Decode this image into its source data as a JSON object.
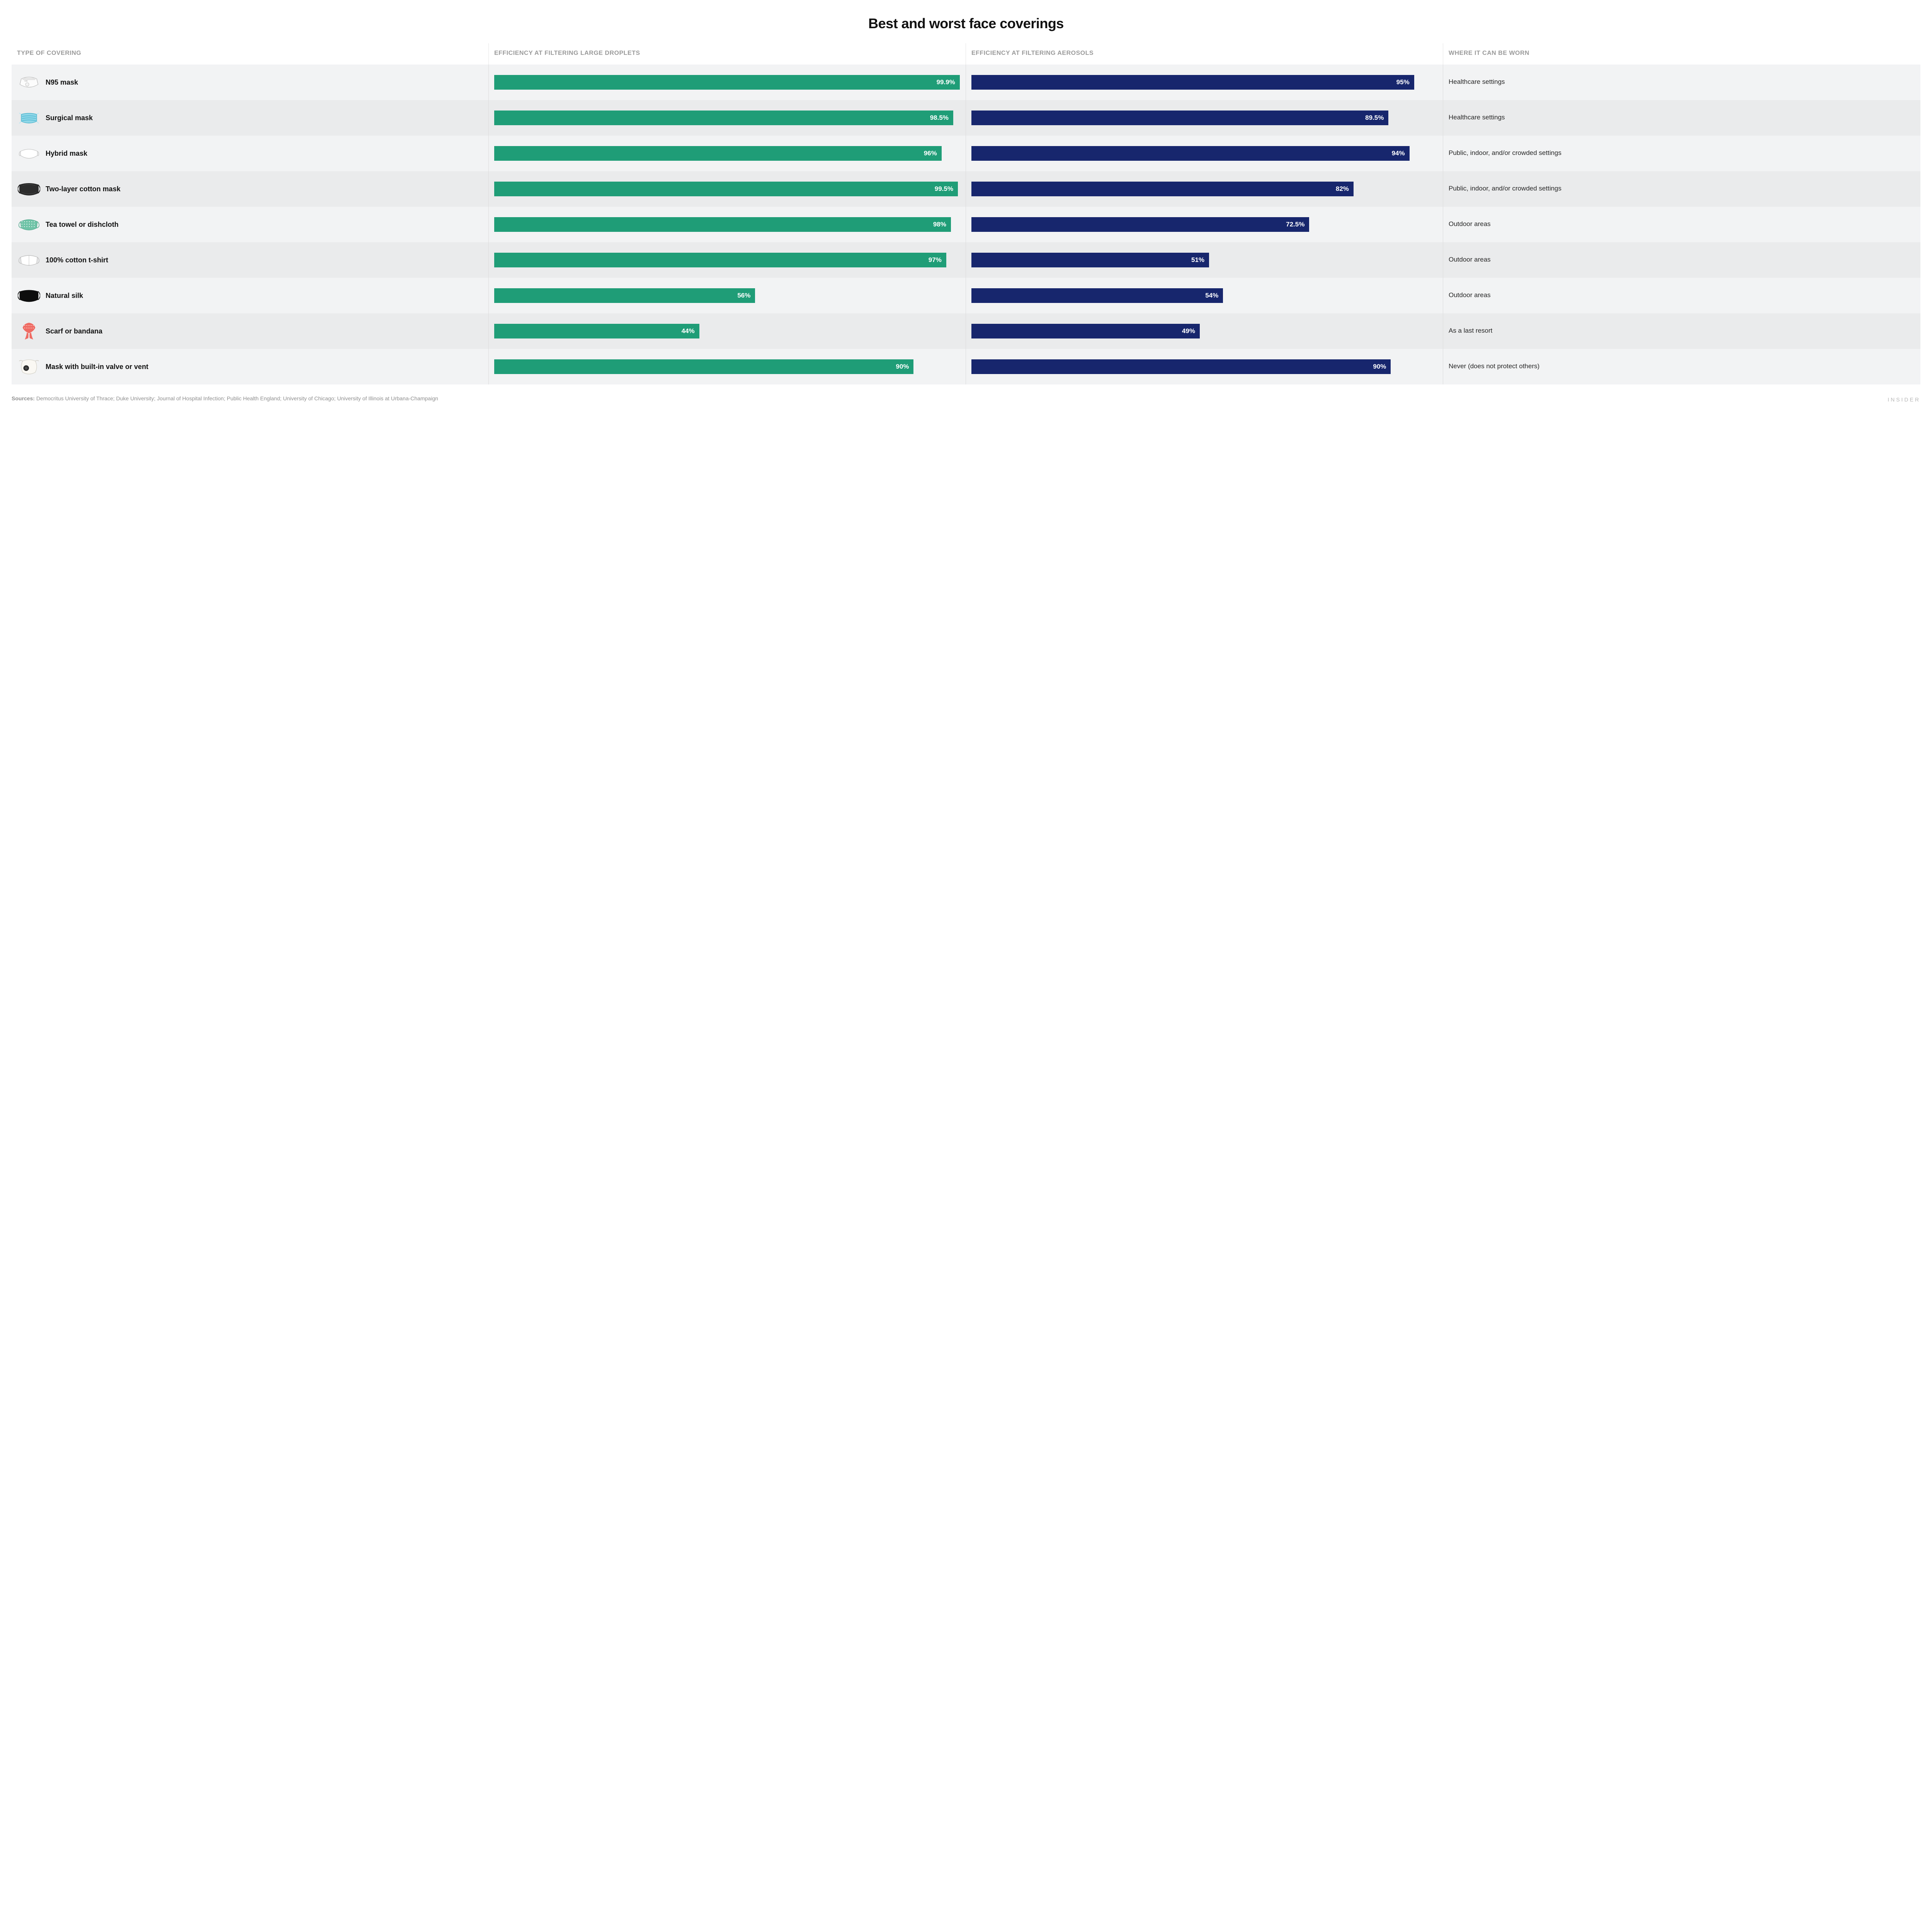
{
  "title": "Best and worst face coverings",
  "columns": {
    "type": "TYPE OF COVERING",
    "droplets": "EFFICIENCY AT FILTERING LARGE DROPLETS",
    "aerosols": "EFFICIENCY AT FILTERING AEROSOLS",
    "where": "WHERE IT CAN BE WORN"
  },
  "bar_colors": {
    "droplets": "#1f9d77",
    "aerosols": "#17266d"
  },
  "bar_max": 100,
  "row_bg_even": "#f2f3f4",
  "row_bg_odd": "#eaebec",
  "header_color": "#9a9a9a",
  "text_color": "#111111",
  "grid_line_color": "#dcdcdc",
  "title_fontsize": 36,
  "header_fontsize": 16,
  "label_fontsize": 18,
  "bar_label_fontsize": 17,
  "where_fontsize": 17,
  "rows": [
    {
      "icon": "n95",
      "label": "N95 mask",
      "droplets": 99.9,
      "droplets_label": "99.9%",
      "aerosols": 95,
      "aerosols_label": "95%",
      "where": "Healthcare settings"
    },
    {
      "icon": "surgical",
      "label": "Surgical mask",
      "droplets": 98.5,
      "droplets_label": "98.5%",
      "aerosols": 89.5,
      "aerosols_label": "89.5%",
      "where": "Healthcare settings"
    },
    {
      "icon": "hybrid",
      "label": "Hybrid mask",
      "droplets": 96,
      "droplets_label": "96%",
      "aerosols": 94,
      "aerosols_label": "94%",
      "where": "Public, indoor, and/or crowded settings"
    },
    {
      "icon": "cotton2",
      "label": "Two-layer cotton mask",
      "droplets": 99.5,
      "droplets_label": "99.5%",
      "aerosols": 82,
      "aerosols_label": "82%",
      "where": "Public, indoor, and/or crowded settings"
    },
    {
      "icon": "teatowel",
      "label": "Tea towel or dishcloth",
      "droplets": 98,
      "droplets_label": "98%",
      "aerosols": 72.5,
      "aerosols_label": "72.5%",
      "where": "Outdoor areas"
    },
    {
      "icon": "tshirt",
      "label": "100% cotton t-shirt",
      "droplets": 97,
      "droplets_label": "97%",
      "aerosols": 51,
      "aerosols_label": "51%",
      "where": "Outdoor areas"
    },
    {
      "icon": "silk",
      "label": "Natural silk",
      "droplets": 56,
      "droplets_label": "56%",
      "aerosols": 54,
      "aerosols_label": "54%",
      "where": "Outdoor areas"
    },
    {
      "icon": "scarf",
      "label": "Scarf or bandana",
      "droplets": 44,
      "droplets_label": "44%",
      "aerosols": 49,
      "aerosols_label": "49%",
      "where": "As a last resort"
    },
    {
      "icon": "valve",
      "label": "Mask with built-in valve or vent",
      "droplets": 90,
      "droplets_label": "90%",
      "aerosols": 90,
      "aerosols_label": "90%",
      "where": "Never (does not protect others)"
    }
  ],
  "sources_label": "Sources:",
  "sources_text": "Democritus University of Thrace; Duke University; Journal of Hospital Infection; Public Health England; University of Chicago; University of Illinois at Urbana-Champaign",
  "brand": "INSIDER"
}
